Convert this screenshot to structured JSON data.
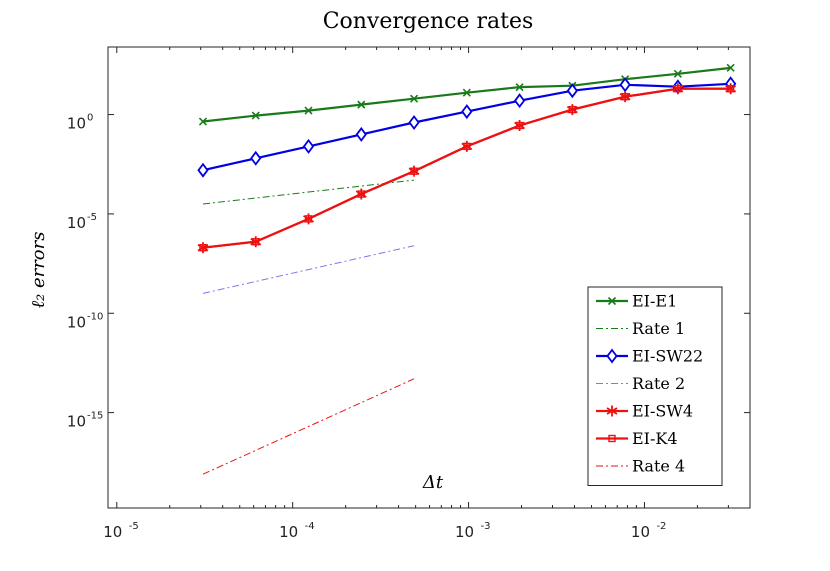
{
  "chart_data": {
    "type": "line",
    "title": "Convergence rates",
    "xlabel": "Δt",
    "ylabel": "ℓ₂ errors",
    "x_scale": "log",
    "y_scale": "log",
    "xlim": [
      -5.05,
      -1.4
    ],
    "ylim": [
      -19.8,
      3.4
    ],
    "x_ticks": [
      {
        "base": "10",
        "exp": "-5",
        "value": -5
      },
      {
        "base": "10",
        "exp": "-4",
        "value": -4
      },
      {
        "base": "10",
        "exp": "-3",
        "value": -3
      },
      {
        "base": "10",
        "exp": "-2",
        "value": -2
      }
    ],
    "y_ticks": [
      {
        "base": "10",
        "exp": "0",
        "value": 0
      },
      {
        "base": "10",
        "exp": "-5",
        "value": -5
      },
      {
        "base": "10",
        "exp": "-10",
        "value": -10
      },
      {
        "base": "10",
        "exp": "-15",
        "value": -15
      }
    ],
    "legend_position": "bottom-right",
    "series": [
      {
        "name": "EI-E1",
        "color": "#1a7a1a",
        "line": "solid",
        "marker": "x",
        "log_x": [
          -4.51,
          -4.21,
          -3.91,
          -3.61,
          -3.31,
          -3.01,
          -2.71,
          -2.41,
          -2.11,
          -1.81,
          -1.51
        ],
        "log_y": [
          -0.35,
          -0.05,
          0.2,
          0.5,
          0.8,
          1.1,
          1.38,
          1.45,
          1.78,
          2.05,
          2.35
        ]
      },
      {
        "name": "Rate 1",
        "color": "#1a7a1a",
        "line": "dashdot",
        "marker": "none",
        "log_x": [
          -4.51,
          -3.31
        ],
        "log_y": [
          -4.5,
          -3.3
        ]
      },
      {
        "name": "EI-SW22",
        "color": "#0000e6",
        "line": "solid",
        "marker": "diamond",
        "log_x": [
          -4.51,
          -4.21,
          -3.91,
          -3.61,
          -3.31,
          -3.01,
          -2.71,
          -2.41,
          -2.11,
          -1.81,
          -1.51
        ],
        "log_y": [
          -2.8,
          -2.2,
          -1.6,
          -1.0,
          -0.4,
          0.15,
          0.7,
          1.2,
          1.5,
          1.4,
          1.55
        ]
      },
      {
        "name": "Rate 2",
        "color": "#7a7af0",
        "line": "dashdot",
        "marker": "none",
        "log_x": [
          -4.51,
          -3.31
        ],
        "log_y": [
          -9.0,
          -6.6
        ]
      },
      {
        "name": "EI-SW4",
        "color": "#ee1111",
        "line": "solid",
        "marker": "star",
        "log_x": [
          -4.51,
          -4.21,
          -3.91,
          -3.61,
          -3.31,
          -3.01,
          -2.71,
          -2.41,
          -2.11,
          -1.81,
          -1.51
        ],
        "log_y": [
          -6.7,
          -6.4,
          -5.25,
          -4.0,
          -2.85,
          -1.6,
          -0.55,
          0.25,
          0.9,
          1.3,
          1.3
        ]
      },
      {
        "name": "EI-K4",
        "color": "#ee1111",
        "line": "solid",
        "marker": "square",
        "log_x": [
          -4.51,
          -4.21,
          -3.91,
          -3.61,
          -3.31,
          -3.01,
          -2.71,
          -2.41,
          -2.11,
          -1.81,
          -1.51
        ],
        "log_y": [
          -6.7,
          -6.4,
          -5.25,
          -4.0,
          -2.85,
          -1.6,
          -0.55,
          0.25,
          0.9,
          1.3,
          1.3
        ]
      },
      {
        "name": "Rate 4",
        "color": "#ee1111",
        "line": "dashdot",
        "marker": "none",
        "log_x": [
          -4.51,
          -3.31
        ],
        "log_y": [
          -18.1,
          -13.3
        ]
      }
    ]
  }
}
